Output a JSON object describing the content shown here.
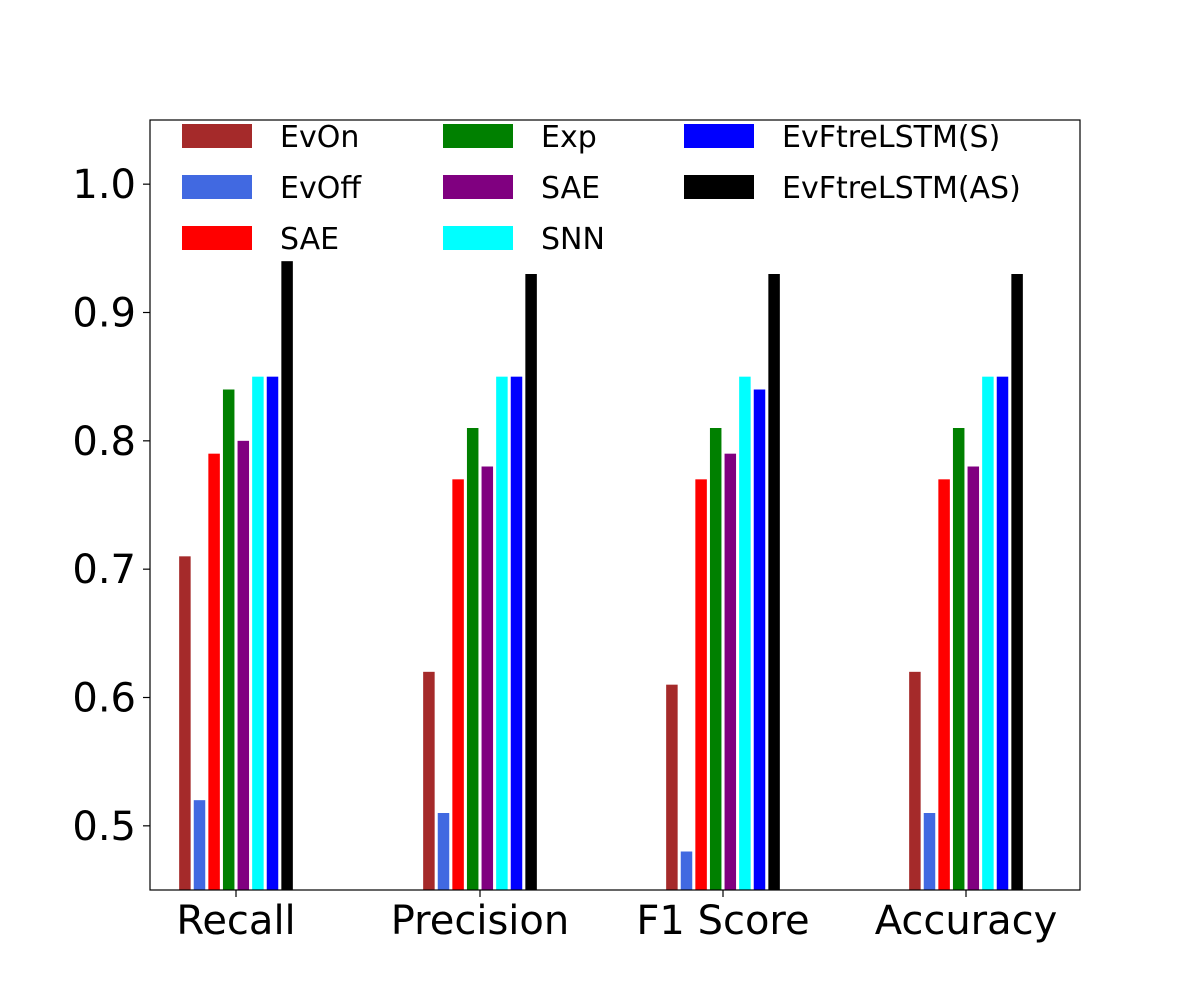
{
  "chart_data": {
    "type": "bar",
    "title": "",
    "xlabel": "",
    "ylabel": "",
    "categories": [
      "Recall",
      "Precision",
      "F1 Score",
      "Accuracy"
    ],
    "ylim": [
      0.45,
      1.05
    ],
    "yticks": [
      0.5,
      0.6,
      0.7,
      0.8,
      0.9,
      1.0
    ],
    "ytick_labels": [
      "0.5",
      "0.6",
      "0.7",
      "0.8",
      "0.9",
      "1.0"
    ],
    "grid": false,
    "legend": {
      "placement": "top",
      "columns": 3
    },
    "series": [
      {
        "name": "EvOn",
        "color": "#a52a2a",
        "values": [
          0.71,
          0.62,
          0.61,
          0.62
        ]
      },
      {
        "name": "EvOff",
        "color": "#4169e1",
        "values": [
          0.52,
          0.51,
          0.48,
          0.51
        ]
      },
      {
        "name": "SAE",
        "color": "#ff0000",
        "values": [
          0.79,
          0.77,
          0.77,
          0.77
        ]
      },
      {
        "name": "Exp",
        "color": "#008000",
        "values": [
          0.84,
          0.81,
          0.81,
          0.81
        ]
      },
      {
        "name": "SAE",
        "color": "#800080",
        "values": [
          0.8,
          0.78,
          0.79,
          0.78
        ]
      },
      {
        "name": "SNN",
        "color": "#00ffff",
        "values": [
          0.85,
          0.85,
          0.85,
          0.85
        ]
      },
      {
        "name": "EvFtreLSTM(S)",
        "color": "#0000ff",
        "values": [
          0.85,
          0.85,
          0.84,
          0.85
        ]
      },
      {
        "name": "EvFtreLSTM(AS)",
        "color": "#000000",
        "values": [
          0.94,
          0.93,
          0.93,
          0.93
        ]
      }
    ]
  }
}
